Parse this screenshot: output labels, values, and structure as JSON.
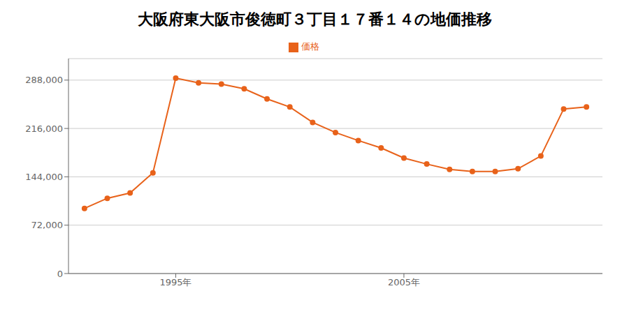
{
  "chart_data": {
    "type": "line",
    "title": "大阪府東大阪市俊徳町３丁目１７番１４の地価推移",
    "x": [
      1991,
      1992,
      1993,
      1994,
      1995,
      1996,
      1997,
      1998,
      1999,
      2000,
      2001,
      2002,
      2003,
      2004,
      2005,
      2006,
      2007,
      2008,
      2009,
      2010,
      2011,
      2012,
      2013
    ],
    "series": [
      {
        "name": "価格",
        "color": "#E8621A",
        "marker": "circle",
        "values": [
          97000,
          112000,
          120000,
          150000,
          291000,
          284000,
          282000,
          275000,
          260000,
          248000,
          225000,
          210000,
          198000,
          187000,
          172000,
          163000,
          155000,
          152000,
          152000,
          156000,
          175000,
          245000,
          248000
        ]
      }
    ],
    "xlim": [
      1990.3,
      2013.7
    ],
    "xticks": [
      {
        "value": 1995,
        "label": "1995年"
      },
      {
        "value": 2005,
        "label": "2005年"
      }
    ],
    "ylim": [
      0,
      320000
    ],
    "yticks": [
      0,
      {
        "value": 72000,
        "label": "72,000"
      },
      {
        "value": 144000,
        "label": "144,000"
      },
      {
        "value": 216000,
        "label": "216,000"
      },
      {
        "value": 288000,
        "label": "288,000"
      }
    ],
    "grid": "y",
    "legend": "top"
  }
}
